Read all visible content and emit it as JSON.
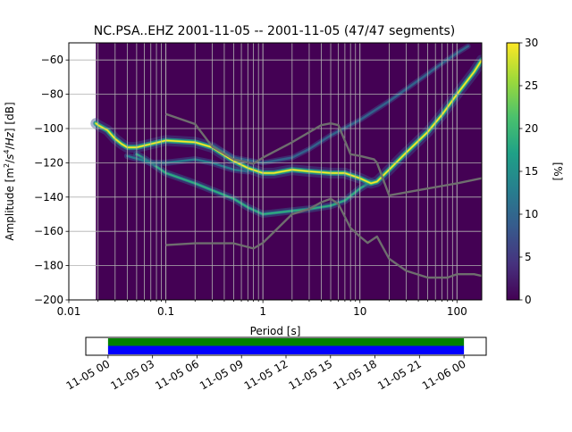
{
  "chart_data": [
    {
      "type": "heatmap",
      "title": "NC.PSA..EHZ   2001-11-05 -- 2001-11-05  (47/47 segments)",
      "xlabel": "Period [s]",
      "ylabel": "Amplitude [m²/s⁴/Hz] [dB]",
      "x_scale": "log",
      "xlim": [
        0.01,
        180
      ],
      "ylim": [
        -200,
        -50
      ],
      "x_ticks": [
        "0.01",
        "0.1",
        "1",
        "10",
        "100"
      ],
      "y_ticks": [
        "-60",
        "-80",
        "-100",
        "-120",
        "-140",
        "-160",
        "-180",
        "-200"
      ],
      "grid": true,
      "data_start_period": 0.019,
      "background_color": "#440154",
      "colorbar": {
        "label": "[%]",
        "range": [
          0,
          30
        ],
        "ticks": [
          "0",
          "5",
          "10",
          "15",
          "20",
          "25",
          "30"
        ],
        "colormap": "viridis"
      },
      "series": [
        {
          "role": "mode",
          "points": [
            [
              0.019,
              -97
            ],
            [
              0.02,
              -98
            ],
            [
              0.025,
              -101
            ],
            [
              0.03,
              -106
            ],
            [
              0.035,
              -109
            ],
            [
              0.04,
              -111
            ],
            [
              0.05,
              -111
            ],
            [
              0.07,
              -109
            ],
            [
              0.1,
              -107
            ],
            [
              0.2,
              -108
            ],
            [
              0.3,
              -111
            ],
            [
              0.5,
              -119
            ],
            [
              0.7,
              -123
            ],
            [
              1,
              -126
            ],
            [
              1.3,
              -126
            ],
            [
              2,
              -124
            ],
            [
              3,
              -125
            ],
            [
              5,
              -126
            ],
            [
              7,
              -126
            ],
            [
              10,
              -129
            ],
            [
              13,
              -132
            ],
            [
              15,
              -131
            ],
            [
              20,
              -124
            ],
            [
              30,
              -114
            ],
            [
              50,
              -102
            ],
            [
              70,
              -92
            ],
            [
              100,
              -80
            ],
            [
              150,
              -67
            ],
            [
              180,
              -60
            ]
          ]
        },
        {
          "role": "lower-branch",
          "points": [
            [
              0.05,
              -115
            ],
            [
              0.07,
              -120
            ],
            [
              0.1,
              -126
            ],
            [
              0.2,
              -132
            ],
            [
              0.3,
              -136
            ],
            [
              0.5,
              -141
            ],
            [
              0.7,
              -146
            ],
            [
              1,
              -150
            ],
            [
              2,
              -148
            ],
            [
              3,
              -147
            ],
            [
              5,
              -145
            ],
            [
              7,
              -142
            ],
            [
              10,
              -135
            ],
            [
              13,
              -131
            ]
          ]
        },
        {
          "role": "upper-branch",
          "points": [
            [
              0.3,
              -110
            ],
            [
              0.5,
              -117
            ],
            [
              1,
              -120
            ],
            [
              2,
              -117
            ],
            [
              3,
              -112
            ],
            [
              5,
              -104
            ],
            [
              10,
              -95
            ],
            [
              20,
              -84
            ],
            [
              30,
              -77
            ],
            [
              50,
              -68
            ],
            [
              70,
              -62
            ],
            [
              100,
              -56
            ],
            [
              130,
              -52
            ]
          ]
        },
        {
          "role": "secondary-branch",
          "points": [
            [
              0.04,
              -116
            ],
            [
              0.07,
              -120
            ],
            [
              0.1,
              -120
            ],
            [
              0.2,
              -118
            ],
            [
              0.3,
              -120
            ],
            [
              0.5,
              -124
            ],
            [
              0.7,
              -125
            ]
          ]
        }
      ],
      "noise_models": [
        {
          "role": "high-noise-model",
          "points": [
            [
              0.1,
              -91.5
            ],
            [
              0.2,
              -97.4
            ],
            [
              0.3,
              -110.5
            ],
            [
              0.5,
              -118
            ],
            [
              0.8,
              -120.5
            ],
            [
              1,
              -117
            ],
            [
              2,
              -108
            ],
            [
              4,
              -98
            ],
            [
              5,
              -97
            ],
            [
              6,
              -98
            ],
            [
              8,
              -115
            ],
            [
              10,
              -116
            ],
            [
              14,
              -118
            ],
            [
              15,
              -120
            ],
            [
              20,
              -139
            ],
            [
              40,
              -136
            ],
            [
              100,
              -132
            ],
            [
              180,
              -129
            ]
          ]
        },
        {
          "role": "low-noise-model",
          "points": [
            [
              0.1,
              -168
            ],
            [
              0.2,
              -167
            ],
            [
              0.5,
              -167
            ],
            [
              0.8,
              -170
            ],
            [
              1,
              -166.7
            ],
            [
              2,
              -150
            ],
            [
              3,
              -147
            ],
            [
              4,
              -143
            ],
            [
              5,
              -141
            ],
            [
              6,
              -144
            ],
            [
              8,
              -158
            ],
            [
              10,
              -163
            ],
            [
              12,
              -166.7
            ],
            [
              15,
              -163
            ],
            [
              20,
              -176
            ],
            [
              30,
              -183
            ],
            [
              50,
              -187
            ],
            [
              80,
              -187
            ],
            [
              100,
              -185
            ],
            [
              150,
              -185
            ],
            [
              180,
              -186
            ]
          ]
        }
      ]
    },
    {
      "type": "timeline",
      "x_ticks": [
        "11-05 00",
        "11-05 03",
        "11-05 06",
        "11-05 09",
        "11-05 12",
        "11-05 15",
        "11-05 18",
        "11-05 21",
        "11-06 00"
      ],
      "x_range_hours": [
        -1.5,
        25.5
      ],
      "data_range_hours": [
        0,
        24
      ],
      "bands": [
        {
          "role": "data-available",
          "color": "#008000"
        },
        {
          "role": "psd-segments",
          "color": "#0000ff"
        }
      ]
    }
  ]
}
